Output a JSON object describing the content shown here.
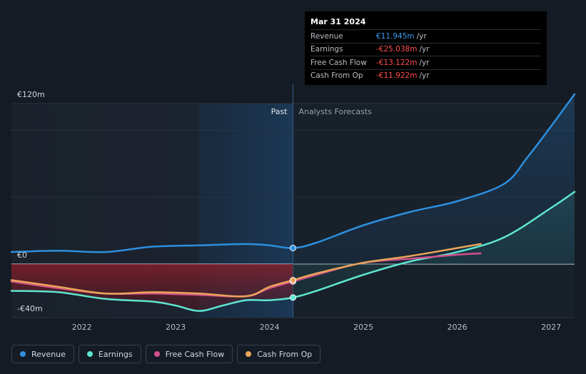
{
  "chart_data": {
    "type": "line",
    "currency_labels": {
      "top": "€120m",
      "zero": "€0",
      "bottom": "-€40m"
    },
    "ylim": [
      -40,
      120
    ],
    "xlim": [
      2021.25,
      2027.25
    ],
    "x_ticks": [
      2022,
      2023,
      2024,
      2025,
      2026,
      2027
    ],
    "x_tick_labels": [
      "2022",
      "2023",
      "2024",
      "2025",
      "2026",
      "2027"
    ],
    "past_label": "Past",
    "forecast_label": "Analysts Forecasts",
    "divider_x": 2024.25,
    "highlight_start": 2023.25,
    "series": [
      {
        "name": "Revenue",
        "color": "#2d8fde",
        "x": [
          2021.25,
          2021.75,
          2022.25,
          2022.75,
          2023.25,
          2023.75,
          2024.0,
          2024.25,
          2024.5,
          2025.0,
          2025.5,
          2026.0,
          2026.5,
          2026.75,
          2027.0,
          2027.25
        ],
        "values": [
          9,
          10,
          9,
          13,
          14,
          15,
          14,
          12,
          16,
          29,
          39,
          47,
          60,
          80,
          103,
          127
        ],
        "marker_index": 7
      },
      {
        "name": "Earnings",
        "color": "#5ee6d0",
        "x": [
          2021.25,
          2021.75,
          2022.25,
          2022.75,
          2023.0,
          2023.25,
          2023.5,
          2023.75,
          2024.0,
          2024.25,
          2024.5,
          2025.0,
          2025.5,
          2026.0,
          2026.5,
          2027.0,
          2027.25
        ],
        "values": [
          -20,
          -21,
          -26,
          -28,
          -31,
          -35,
          -31,
          -27,
          -27,
          -25,
          -20,
          -8,
          2,
          9,
          20,
          42,
          54
        ],
        "marker_index": 9
      },
      {
        "name": "Free Cash Flow",
        "color": "#d3508c",
        "x": [
          2021.25,
          2021.75,
          2022.25,
          2022.75,
          2023.25,
          2023.75,
          2024.0,
          2024.25,
          2024.5,
          2025.0,
          2025.5,
          2026.0,
          2026.25
        ],
        "values": [
          -13,
          -18,
          -22,
          -22,
          -23,
          -24,
          -18,
          -13,
          -8,
          1,
          4,
          7,
          8
        ],
        "marker_index": 7
      },
      {
        "name": "Cash From Op",
        "color": "#e8a558",
        "x": [
          2021.25,
          2021.75,
          2022.25,
          2022.75,
          2023.25,
          2023.75,
          2024.0,
          2024.25,
          2024.5,
          2025.0,
          2025.5,
          2026.0,
          2026.25
        ],
        "values": [
          -12,
          -17,
          -22,
          -21,
          -22,
          -24,
          -17,
          -12,
          -7,
          1,
          6,
          12,
          15
        ],
        "marker_index": 7
      }
    ]
  },
  "tooltip": {
    "date": "Mar 31 2024",
    "rows": [
      {
        "label": "Revenue",
        "value": "€11.945m",
        "unit": "/yr",
        "color": "#3d9cf0"
      },
      {
        "label": "Earnings",
        "value": "-€25.038m",
        "unit": "/yr",
        "color": "#ff4d4d"
      },
      {
        "label": "Free Cash Flow",
        "value": "-€13.122m",
        "unit": "/yr",
        "color": "#ff4d4d"
      },
      {
        "label": "Cash From Op",
        "value": "-€11.922m",
        "unit": "/yr",
        "color": "#ff4d4d"
      }
    ]
  },
  "legend": [
    {
      "label": "Revenue",
      "color": "#2d8fde"
    },
    {
      "label": "Earnings",
      "color": "#5ee6d0"
    },
    {
      "label": "Free Cash Flow",
      "color": "#d3508c"
    },
    {
      "label": "Cash From Op",
      "color": "#e8a558"
    }
  ]
}
